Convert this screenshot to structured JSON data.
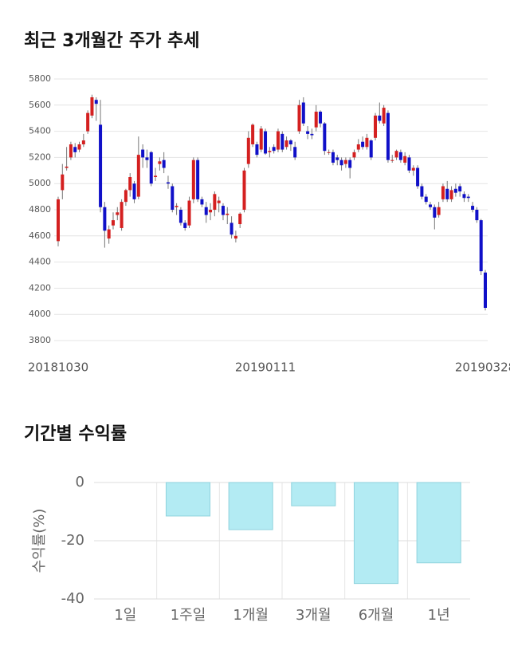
{
  "chart_data": [
    {
      "type": "candlestick",
      "title": "최근 3개월간 주가 추세",
      "categories": [
        "20181030",
        null,
        null,
        null,
        null,
        null,
        null,
        null,
        null,
        null,
        null,
        null,
        null,
        null,
        null,
        null,
        null,
        null,
        null,
        null,
        null,
        null,
        null,
        null,
        null,
        null,
        null,
        null,
        null,
        null,
        null,
        null,
        null,
        null,
        null,
        null,
        null,
        null,
        null,
        null,
        null,
        null,
        null,
        null,
        null,
        null,
        null,
        null,
        null,
        "20190111",
        null,
        null,
        null,
        null,
        null,
        null,
        null,
        null,
        null,
        null,
        null,
        null,
        null,
        null,
        null,
        null,
        null,
        null,
        null,
        null,
        null,
        null,
        null,
        null,
        null,
        null,
        null,
        null,
        null,
        null,
        null,
        null,
        null,
        null,
        null,
        null,
        null,
        null,
        null,
        null,
        null,
        null,
        null,
        null,
        null,
        null,
        null,
        null,
        null,
        null,
        null,
        "20190328"
      ],
      "open": [
        4560,
        4950,
        5120,
        5200,
        5280,
        5260,
        5300,
        5400,
        5520,
        5640,
        5450,
        4820,
        4580,
        4680,
        4760,
        4660,
        4860,
        4950,
        5000,
        4900,
        5260,
        5200,
        5240,
        5050,
        5150,
        5180,
        5010,
        4980,
        4820,
        4800,
        4700,
        4680,
        4880,
        5180,
        4880,
        4820,
        4780,
        4800,
        4850,
        4830,
        4760,
        4700,
        4580,
        4690,
        4800,
        5150,
        5300,
        5300,
        5260,
        5400,
        5240,
        5280,
        5260,
        5380,
        5280,
        5330,
        5280,
        5400,
        5620,
        5400,
        5380,
        5430,
        5550,
        5460,
        5240,
        5240,
        5200,
        5180,
        5150,
        5180,
        5200,
        5260,
        5320,
        5280,
        5330,
        5350,
        5520,
        5460,
        5540,
        5180,
        5200,
        5240,
        5160,
        5200,
        5100,
        5120,
        4980,
        4900,
        4840,
        4820,
        4760,
        4880,
        4960,
        4880,
        4960,
        4980,
        4920,
        4900,
        4830,
        4800,
        4720,
        4320
      ],
      "high": [
        4900,
        5150,
        5280,
        5320,
        5310,
        5320,
        5380,
        5560,
        5680,
        5660,
        5640,
        4860,
        4680,
        4780,
        4820,
        4880,
        4960,
        5080,
        5020,
        5360,
        5300,
        5260,
        5250,
        5120,
        5200,
        5240,
        5060,
        5000,
        4850,
        4820,
        4720,
        4900,
        5200,
        5200,
        4900,
        4860,
        4850,
        4940,
        4900,
        4850,
        4820,
        4750,
        4640,
        4780,
        5120,
        5400,
        5460,
        5320,
        5440,
        5420,
        5280,
        5300,
        5420,
        5400,
        5360,
        5340,
        5320,
        5640,
        5660,
        5440,
        5420,
        5600,
        5560,
        5470,
        5260,
        5260,
        5220,
        5200,
        5200,
        5200,
        5260,
        5340,
        5360,
        5380,
        5340,
        5540,
        5620,
        5600,
        5560,
        5220,
        5260,
        5260,
        5240,
        5220,
        5140,
        5140,
        5000,
        4920,
        4860,
        4840,
        4860,
        5000,
        5020,
        4980,
        5000,
        5000,
        4940,
        4920,
        4860,
        4820,
        4730,
        4340
      ],
      "low": [
        4520,
        4880,
        5100,
        5180,
        5200,
        5240,
        5280,
        5380,
        5500,
        5480,
        4780,
        4510,
        4540,
        4650,
        4720,
        4640,
        4830,
        4900,
        4850,
        4880,
        5120,
        5120,
        4980,
        5020,
        5100,
        5080,
        4960,
        4780,
        4760,
        4680,
        4640,
        4660,
        4850,
        4860,
        4820,
        4700,
        4720,
        4750,
        4780,
        4720,
        4690,
        4580,
        4550,
        4660,
        4780,
        5120,
        5280,
        5200,
        5240,
        5220,
        5200,
        5230,
        5240,
        5240,
        5260,
        5250,
        5180,
        5380,
        5440,
        5340,
        5340,
        5400,
        5430,
        5220,
        5220,
        5140,
        5140,
        5100,
        5120,
        5040,
        5180,
        5240,
        5260,
        5260,
        5180,
        5330,
        5460,
        5440,
        5160,
        5160,
        5180,
        5160,
        5140,
        5080,
        5060,
        4960,
        4880,
        4840,
        4800,
        4650,
        4740,
        4860,
        4860,
        4860,
        4900,
        4900,
        4860,
        4860,
        4780,
        4700,
        4300,
        4030
      ],
      "close": [
        4880,
        5070,
        5130,
        5300,
        5240,
        5300,
        5330,
        5540,
        5660,
        5610,
        4820,
        4640,
        4650,
        4720,
        4780,
        4860,
        4950,
        5050,
        4880,
        5220,
        5200,
        5180,
        5000,
        5060,
        5170,
        5120,
        5000,
        4800,
        4830,
        4700,
        4660,
        4870,
        5180,
        4880,
        4840,
        4760,
        4800,
        4920,
        4870,
        4760,
        4770,
        4610,
        4600,
        4770,
        5100,
        5350,
        5450,
        5220,
        5420,
        5230,
        5250,
        5250,
        5400,
        5260,
        5330,
        5300,
        5200,
        5600,
        5460,
        5380,
        5370,
        5550,
        5460,
        5250,
        5240,
        5160,
        5180,
        5140,
        5180,
        5120,
        5240,
        5300,
        5280,
        5350,
        5200,
        5520,
        5480,
        5580,
        5180,
        5180,
        5250,
        5180,
        5210,
        5100,
        5120,
        4980,
        4900,
        4860,
        4820,
        4740,
        4820,
        4980,
        4880,
        4950,
        4930,
        4940,
        4890,
        4890,
        4800,
        4720,
        4330,
        4050
      ],
      "up_color": "#d42020",
      "down_color": "#1010c8",
      "ylim": [
        3800,
        5800
      ],
      "yticks": [
        3800,
        4000,
        4200,
        4400,
        4600,
        4800,
        5000,
        5200,
        5400,
        5600,
        5800
      ],
      "grid": true
    },
    {
      "type": "bar",
      "title": "기간별 수익률",
      "ylabel": "수익률(%)",
      "categories": [
        "1일",
        "1주일",
        "1개월",
        "3개월",
        "6개월",
        "1년"
      ],
      "values": [
        0,
        -11.5,
        -16.2,
        -8.0,
        -34.7,
        -27.6
      ],
      "color": "#b3ebf3",
      "edge_color": "#8fd2dd",
      "ylim": [
        -40,
        0
      ],
      "yticks": [
        0,
        -20,
        -40
      ],
      "grid": true
    }
  ]
}
